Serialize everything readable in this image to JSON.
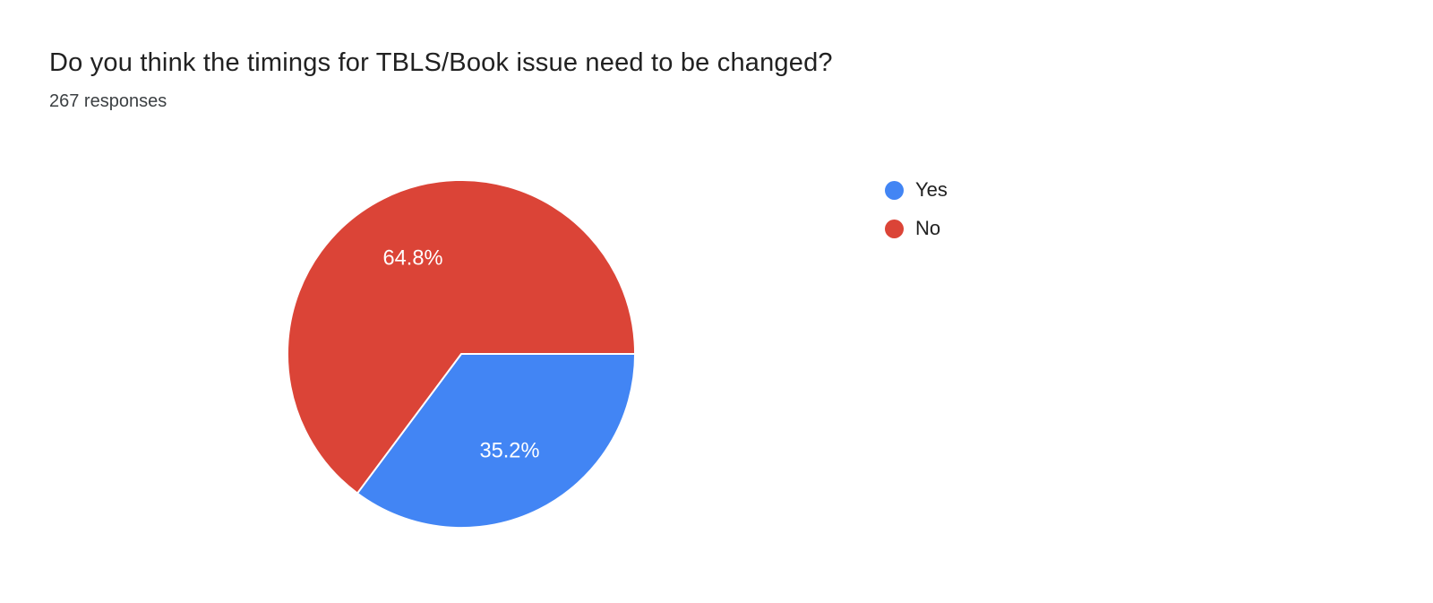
{
  "header": {
    "title": "Do you think the timings for TBLS/Book issue need to be changed?",
    "responses": "267 responses"
  },
  "chart_data": {
    "type": "pie",
    "categories": [
      "Yes",
      "No"
    ],
    "values": [
      35.2,
      64.8
    ],
    "slice_labels": [
      "35.2%",
      "64.8%"
    ],
    "colors": [
      "#4285f4",
      "#db4437"
    ],
    "title": "Do you think the timings for TBLS/Book issue need to be changed?",
    "subtitle": "267 responses",
    "start_angle_deg": 0,
    "direction": "clockwise",
    "legend_position": "right",
    "slice_stroke_color": "#ffffff",
    "label_radius_fraction": 0.62
  }
}
